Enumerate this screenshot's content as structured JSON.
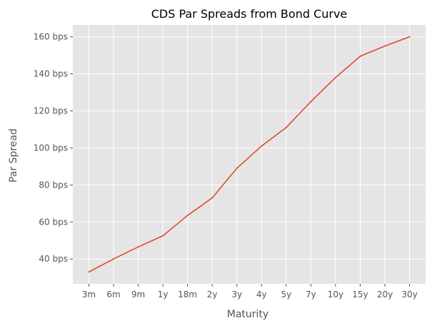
{
  "chart_data": {
    "type": "line",
    "title": "CDS Par Spreads from Bond Curve",
    "xlabel": "Maturity",
    "ylabel": "Par Spread",
    "categories": [
      "3m",
      "6m",
      "9m",
      "1y",
      "18m",
      "2y",
      "3y",
      "4y",
      "5y",
      "7y",
      "10y",
      "15y",
      "20y",
      "30y"
    ],
    "series": [
      {
        "values": [
          33,
          40,
          46.5,
          52.5,
          63.5,
          73,
          89,
          101,
          111,
          125,
          138,
          149.5,
          155,
          160
        ],
        "color": "#e24a33"
      }
    ],
    "yticks": [
      40,
      60,
      80,
      100,
      120,
      140,
      160
    ],
    "ytick_suffix": " bps",
    "ylim": [
      26.6,
      166.4
    ],
    "grid": true,
    "style": {
      "plot_background": "#e5e5e5",
      "grid_color": "#ffffff"
    }
  }
}
